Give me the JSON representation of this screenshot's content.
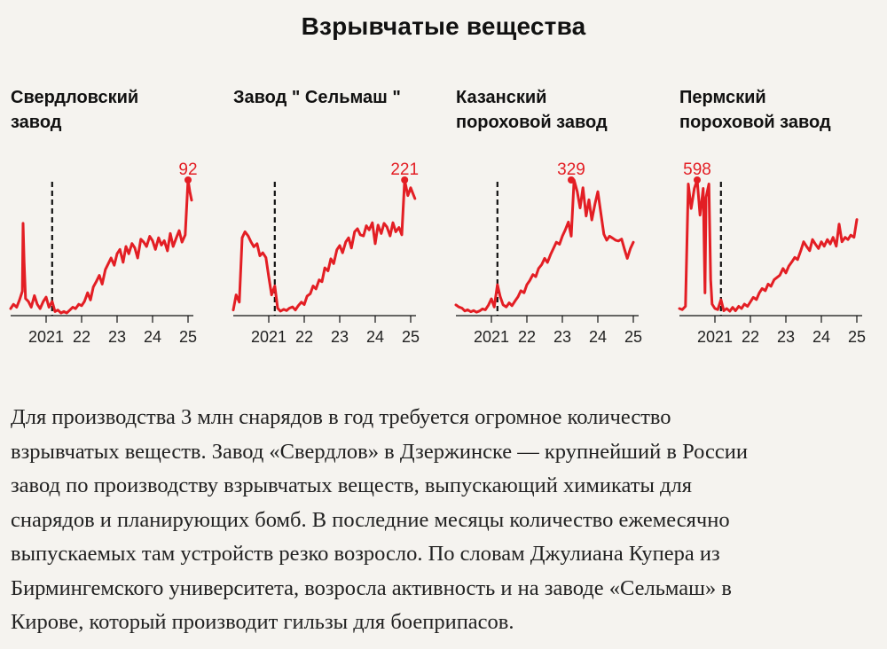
{
  "title": "Взрывчатые вещества",
  "panels": [
    {
      "title_lines": [
        "Свердловский",
        "завод"
      ]
    },
    {
      "title_lines": [
        "Завод \" Сельмаш \""
      ]
    },
    {
      "title_lines": [
        "Казанский",
        "пороховой завод"
      ]
    },
    {
      "title_lines": [
        "Пермский",
        "пороховой завод"
      ]
    }
  ],
  "paragraph_lines": [
    "Для производства 3 млн снарядов в год требуется огромное количество",
    "взрывчатых веществ. Завод «Свердлов» в Дзержинске — крупнейший в России",
    "завод по производству взрывчатых веществ, выпускающий химикаты для",
    "снарядов и планирующих бомб. В последние месяцы количество ежемесячно",
    "выпускаемых там устройств резко возросло. По словам Джулиана Купера из",
    "Бирмингемского университета, возросла активность и на заводе «Сельмаш» в",
    "Кирове, который производит гильзы для боеприпасов."
  ],
  "colors": {
    "line": "#e31e24",
    "axis": "#111111",
    "background": "#f5f3ef"
  },
  "chart_data": [
    {
      "type": "line",
      "title": "Свердловский завод",
      "x_ticks": [
        {
          "x": 2021.0,
          "label": "2021"
        },
        {
          "x": 2022.0,
          "label": "22"
        },
        {
          "x": 2023.0,
          "label": "23"
        },
        {
          "x": 2024.0,
          "label": "24"
        },
        {
          "x": 2025.0,
          "label": "25"
        }
      ],
      "xlim": [
        2020.0,
        2025.15
      ],
      "ylim": [
        0,
        92
      ],
      "event_line_x": 2021.17,
      "peak": {
        "x": 2025.0,
        "y": 92,
        "label": "92"
      },
      "series": [
        {
          "x": [
            2020.0,
            2020.08,
            2020.17,
            2020.25,
            2020.33,
            2020.35,
            2020.38,
            2020.42,
            2020.5,
            2020.58,
            2020.67,
            2020.75,
            2020.83,
            2020.92,
            2021.0,
            2021.08,
            2021.17,
            2021.25,
            2021.33,
            2021.42,
            2021.5,
            2021.58,
            2021.67,
            2021.75,
            2021.83,
            2021.92,
            2022.0,
            2022.08,
            2022.17,
            2022.25,
            2022.33,
            2022.42,
            2022.5,
            2022.58,
            2022.67,
            2022.75,
            2022.83,
            2022.92,
            2023.0,
            2023.08,
            2023.17,
            2023.25,
            2023.33,
            2023.42,
            2023.5,
            2023.58,
            2023.67,
            2023.75,
            2023.83,
            2023.92,
            2024.0,
            2024.08,
            2024.17,
            2024.25,
            2024.33,
            2024.42,
            2024.5,
            2024.58,
            2024.67,
            2024.75,
            2024.83,
            2024.92,
            2025.0,
            2025.05,
            2025.1
          ],
          "y": [
            3,
            6,
            4,
            9,
            15,
            62,
            35,
            10,
            8,
            4,
            12,
            6,
            3,
            8,
            11,
            4,
            8,
            1,
            2,
            0,
            1,
            0,
            2,
            4,
            3,
            6,
            5,
            8,
            14,
            9,
            18,
            22,
            26,
            20,
            30,
            34,
            38,
            33,
            41,
            44,
            35,
            46,
            41,
            48,
            45,
            38,
            51,
            49,
            46,
            53,
            50,
            44,
            52,
            47,
            50,
            43,
            55,
            46,
            52,
            57,
            49,
            54,
            92,
            84,
            78
          ]
        }
      ]
    },
    {
      "type": "line",
      "title": "Завод \" Сельмаш \"",
      "x_ticks": [
        {
          "x": 2021.0,
          "label": "2021"
        },
        {
          "x": 2022.0,
          "label": "22"
        },
        {
          "x": 2023.0,
          "label": "23"
        },
        {
          "x": 2024.0,
          "label": "24"
        },
        {
          "x": 2025.0,
          "label": "25"
        }
      ],
      "xlim": [
        2020.0,
        2025.15
      ],
      "ylim": [
        0,
        221
      ],
      "event_line_x": 2021.17,
      "peak": {
        "x": 2024.83,
        "y": 221,
        "label": "221"
      },
      "series": [
        {
          "x": [
            2020.0,
            2020.08,
            2020.17,
            2020.25,
            2020.33,
            2020.42,
            2020.5,
            2020.58,
            2020.67,
            2020.75,
            2020.83,
            2020.92,
            2021.0,
            2021.08,
            2021.17,
            2021.25,
            2021.33,
            2021.42,
            2021.5,
            2021.58,
            2021.67,
            2021.75,
            2021.83,
            2021.92,
            2022.0,
            2022.08,
            2022.17,
            2022.25,
            2022.33,
            2022.42,
            2022.5,
            2022.58,
            2022.67,
            2022.75,
            2022.83,
            2022.92,
            2023.0,
            2023.08,
            2023.17,
            2023.25,
            2023.33,
            2023.42,
            2023.5,
            2023.58,
            2023.67,
            2023.75,
            2023.83,
            2023.92,
            2024.0,
            2024.08,
            2024.17,
            2024.25,
            2024.33,
            2024.42,
            2024.5,
            2024.58,
            2024.67,
            2024.75,
            2024.83,
            2024.92,
            2025.0,
            2025.08,
            2025.12
          ],
          "y": [
            5,
            30,
            18,
            125,
            135,
            128,
            118,
            110,
            115,
            95,
            100,
            92,
            60,
            30,
            45,
            8,
            3,
            6,
            4,
            8,
            10,
            5,
            12,
            18,
            14,
            28,
            32,
            45,
            40,
            55,
            52,
            75,
            70,
            90,
            82,
            105,
            112,
            100,
            118,
            125,
            108,
            135,
            140,
            130,
            128,
            145,
            138,
            150,
            115,
            146,
            132,
            149,
            143,
            128,
            150,
            135,
            142,
            130,
            221,
            195,
            208,
            196,
            190
          ]
        }
      ]
    },
    {
      "type": "line",
      "title": "Казанский пороховой завод",
      "x_ticks": [
        {
          "x": 2021.0,
          "label": "2021"
        },
        {
          "x": 2022.0,
          "label": "22"
        },
        {
          "x": 2023.0,
          "label": "23"
        },
        {
          "x": 2024.0,
          "label": "24"
        },
        {
          "x": 2025.0,
          "label": "25"
        }
      ],
      "xlim": [
        2020.0,
        2025.15
      ],
      "ylim": [
        0,
        329
      ],
      "event_line_x": 2021.17,
      "peak": {
        "x": 2023.25,
        "y": 329,
        "label": "329"
      },
      "series": [
        {
          "x": [
            2020.0,
            2020.08,
            2020.17,
            2020.25,
            2020.33,
            2020.42,
            2020.5,
            2020.58,
            2020.67,
            2020.75,
            2020.83,
            2020.92,
            2021.0,
            2021.08,
            2021.17,
            2021.25,
            2021.33,
            2021.42,
            2021.5,
            2021.58,
            2021.67,
            2021.75,
            2021.83,
            2021.92,
            2022.0,
            2022.08,
            2022.17,
            2022.25,
            2022.33,
            2022.42,
            2022.5,
            2022.58,
            2022.67,
            2022.75,
            2022.83,
            2022.92,
            2023.0,
            2023.08,
            2023.17,
            2023.25,
            2023.33,
            2023.42,
            2023.5,
            2023.58,
            2023.67,
            2023.75,
            2023.83,
            2023.92,
            2024.0,
            2024.08,
            2024.17,
            2024.25,
            2024.33,
            2024.42,
            2024.5,
            2024.58,
            2024.67,
            2024.75,
            2024.83,
            2024.92,
            2025.0
          ],
          "y": [
            20,
            15,
            12,
            5,
            8,
            3,
            6,
            2,
            5,
            10,
            8,
            20,
            35,
            15,
            70,
            40,
            20,
            15,
            25,
            18,
            30,
            40,
            55,
            50,
            70,
            80,
            95,
            90,
            110,
            120,
            135,
            125,
            145,
            160,
            175,
            170,
            190,
            205,
            225,
            190,
            329,
            300,
            260,
            310,
            240,
            280,
            230,
            270,
            300,
            250,
            195,
            180,
            190,
            185,
            180,
            178,
            183,
            158,
            135,
            160,
            175
          ]
        }
      ]
    },
    {
      "type": "line",
      "title": "Пермский пороховой завод",
      "x_ticks": [
        {
          "x": 2021.0,
          "label": "2021"
        },
        {
          "x": 2022.0,
          "label": "22"
        },
        {
          "x": 2023.0,
          "label": "23"
        },
        {
          "x": 2024.0,
          "label": "24"
        },
        {
          "x": 2025.0,
          "label": "25"
        }
      ],
      "xlim": [
        2020.0,
        2025.15
      ],
      "ylim": [
        0,
        598
      ],
      "event_line_x": 2021.17,
      "peak": {
        "x": 2020.5,
        "y": 598,
        "label": "598"
      },
      "series": [
        {
          "x": [
            2020.0,
            2020.08,
            2020.17,
            2020.25,
            2020.33,
            2020.42,
            2020.5,
            2020.58,
            2020.67,
            2020.72,
            2020.75,
            2020.83,
            2020.88,
            2020.92,
            2021.0,
            2021.08,
            2021.17,
            2021.25,
            2021.33,
            2021.42,
            2021.5,
            2021.58,
            2021.67,
            2021.75,
            2021.83,
            2021.92,
            2022.0,
            2022.08,
            2022.17,
            2022.25,
            2022.33,
            2022.42,
            2022.5,
            2022.58,
            2022.67,
            2022.75,
            2022.83,
            2022.92,
            2023.0,
            2023.08,
            2023.17,
            2023.25,
            2023.33,
            2023.42,
            2023.5,
            2023.58,
            2023.67,
            2023.75,
            2023.83,
            2023.92,
            2024.0,
            2024.08,
            2024.17,
            2024.25,
            2024.33,
            2024.42,
            2024.5,
            2024.58,
            2024.67,
            2024.75,
            2024.83,
            2024.92,
            2025.0
          ],
          "y": [
            20,
            15,
            30,
            580,
            470,
            560,
            598,
            440,
            560,
            90,
            520,
            580,
            150,
            40,
            20,
            15,
            60,
            10,
            20,
            8,
            25,
            10,
            30,
            20,
            40,
            30,
            50,
            70,
            60,
            90,
            110,
            100,
            130,
            120,
            150,
            160,
            170,
            200,
            180,
            210,
            230,
            250,
            240,
            280,
            320,
            300,
            280,
            330,
            310,
            290,
            320,
            300,
            330,
            310,
            340,
            300,
            400,
            320,
            340,
            330,
            350,
            340,
            420
          ]
        }
      ]
    }
  ]
}
